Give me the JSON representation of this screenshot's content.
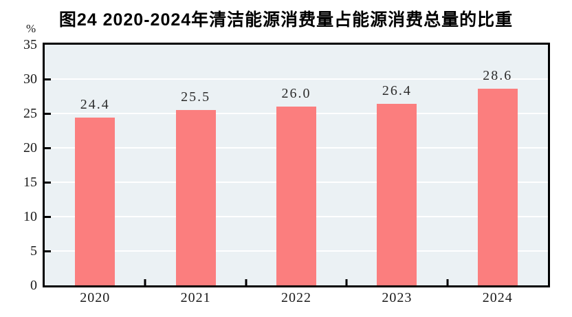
{
  "title": "图24  2020-2024年清洁能源消费量占能源消费总量的比重",
  "y_axis_unit": "%",
  "chart_data": {
    "type": "bar",
    "title": "图24  2020-2024年清洁能源消费量占能源消费总量的比重",
    "categories": [
      "2020",
      "2021",
      "2022",
      "2023",
      "2024"
    ],
    "values": [
      24.4,
      25.5,
      26.0,
      26.4,
      28.6
    ],
    "value_labels": [
      "24.4",
      "25.5",
      "26.0",
      "26.4",
      "28.6"
    ],
    "xlabel": "",
    "ylabel": "%",
    "ylim": [
      0,
      35
    ],
    "ytick_step": 5,
    "yticks": [
      0,
      5,
      10,
      15,
      20,
      25,
      30,
      35
    ],
    "grid": "horizontal",
    "legend": "none",
    "colors": {
      "bar": "#fb7e7e",
      "plot_background": "#ebf1f4",
      "gridline": "#ffffff",
      "axis_frame": "#000000",
      "tick": "#000000",
      "label_text": "#2b2b2b",
      "title_text": "#000000"
    }
  }
}
